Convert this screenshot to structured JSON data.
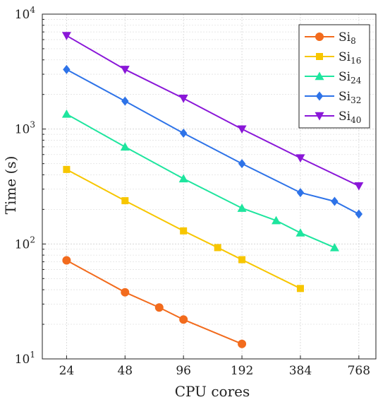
{
  "chart_data": {
    "type": "line",
    "xlabel": "CPU cores",
    "ylabel": "Time (s)",
    "xscale": "log2",
    "yscale": "log10",
    "xlim": [
      18,
      940
    ],
    "ylim": [
      10,
      10000
    ],
    "xticks": [
      24,
      48,
      96,
      192,
      384,
      768
    ],
    "xtick_labels": [
      "24",
      "48",
      "96",
      "192",
      "384",
      "768"
    ],
    "yticks": [
      10,
      100,
      1000,
      10000
    ],
    "ytick_labels": [
      {
        "base": "10",
        "exp": "1"
      },
      {
        "base": "10",
        "exp": "2"
      },
      {
        "base": "10",
        "exp": "3"
      },
      {
        "base": "10",
        "exp": "4"
      }
    ],
    "grid": true,
    "legend_position": "top-right",
    "series": [
      {
        "name_base": "Si",
        "name_sub": "8",
        "color": "#f26b1d",
        "marker": "circle",
        "x": [
          24,
          48,
          72,
          96,
          192
        ],
        "y": [
          72,
          38,
          28,
          22,
          13.5
        ]
      },
      {
        "name_base": "Si",
        "name_sub": "16",
        "color": "#f7c600",
        "marker": "square",
        "x": [
          24,
          48,
          96,
          144,
          192,
          384
        ],
        "y": [
          445,
          238,
          130,
          93,
          73,
          41
        ]
      },
      {
        "name_base": "Si",
        "name_sub": "24",
        "color": "#1ee59e",
        "marker": "triangle-up",
        "x": [
          24,
          48,
          96,
          192,
          288,
          384,
          576
        ],
        "y": [
          1350,
          700,
          370,
          205,
          160,
          125,
          93
        ]
      },
      {
        "name_base": "Si",
        "name_sub": "32",
        "color": "#2e73e8",
        "marker": "diamond",
        "x": [
          24,
          48,
          96,
          192,
          384,
          576,
          768
        ],
        "y": [
          3300,
          1750,
          920,
          500,
          280,
          235,
          182
        ]
      },
      {
        "name_base": "Si",
        "name_sub": "40",
        "color": "#8a17d8",
        "marker": "triangle-down",
        "x": [
          24,
          48,
          96,
          192,
          384,
          768
        ],
        "y": [
          6500,
          3300,
          1850,
          1000,
          560,
          320
        ]
      }
    ]
  }
}
